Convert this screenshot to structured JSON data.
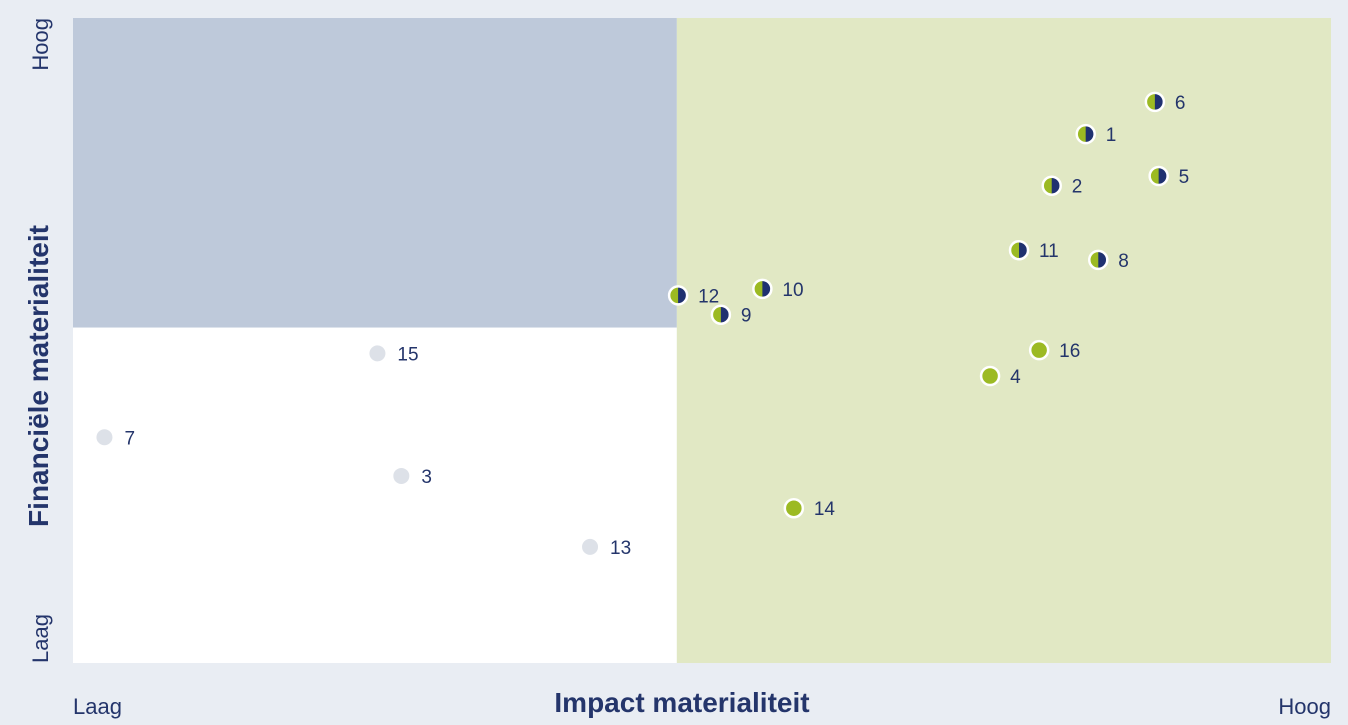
{
  "colors": {
    "background": "#e9edf3",
    "quadrant_top_left": "#bec9da",
    "quadrant_bottom_left": "#ffffff",
    "quadrant_right": "#e1e8c4",
    "dot_green": "#9cba23",
    "dot_navy": "#1f3170",
    "dot_grey": "#dde1e8",
    "text": "#24356b"
  },
  "chart_data": {
    "type": "scatter",
    "title": "",
    "xlabel": "Impact materialiteit",
    "ylabel": "Financiële materialiteit",
    "x_low_label": "Laag",
    "x_high_label": "Hoog",
    "y_low_label": "Laag",
    "y_high_label": "Hoog",
    "xlim": [
      0,
      100
    ],
    "ylim": [
      0,
      100
    ],
    "x_threshold": 48,
    "y_threshold": 52,
    "grid": false,
    "legend": "none",
    "points": [
      {
        "label": "1",
        "x": 80.5,
        "y": 82,
        "style": "half"
      },
      {
        "label": "2",
        "x": 77.8,
        "y": 74,
        "style": "half"
      },
      {
        "label": "3",
        "x": 26.1,
        "y": 29,
        "style": "grey"
      },
      {
        "label": "4",
        "x": 72.9,
        "y": 44.5,
        "style": "green"
      },
      {
        "label": "5",
        "x": 86.3,
        "y": 75.5,
        "style": "half"
      },
      {
        "label": "6",
        "x": 86.0,
        "y": 87,
        "style": "half"
      },
      {
        "label": "7",
        "x": 2.5,
        "y": 35,
        "style": "grey"
      },
      {
        "label": "8",
        "x": 81.5,
        "y": 62.5,
        "style": "half"
      },
      {
        "label": "9",
        "x": 51.5,
        "y": 54,
        "style": "half"
      },
      {
        "label": "10",
        "x": 54.8,
        "y": 58,
        "style": "half"
      },
      {
        "label": "11",
        "x": 75.2,
        "y": 64,
        "style": "half"
      },
      {
        "label": "12",
        "x": 48.1,
        "y": 57,
        "style": "half"
      },
      {
        "label": "13",
        "x": 41.1,
        "y": 18,
        "style": "grey"
      },
      {
        "label": "14",
        "x": 57.3,
        "y": 24,
        "style": "green"
      },
      {
        "label": "15",
        "x": 24.2,
        "y": 48,
        "style": "grey"
      },
      {
        "label": "16",
        "x": 76.8,
        "y": 48.5,
        "style": "green"
      }
    ]
  }
}
